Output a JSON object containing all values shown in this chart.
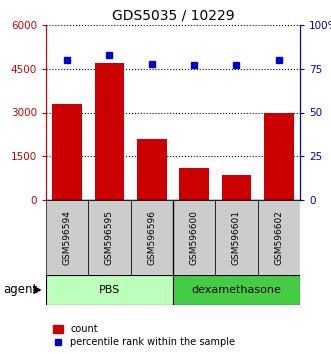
{
  "title": "GDS5035 / 10229",
  "samples": [
    "GSM596594",
    "GSM596595",
    "GSM596596",
    "GSM596600",
    "GSM596601",
    "GSM596602"
  ],
  "counts": [
    3300,
    4700,
    2100,
    1100,
    850,
    3000
  ],
  "percentiles": [
    80,
    83,
    78,
    77,
    77,
    80
  ],
  "ylim_left": [
    0,
    6000
  ],
  "ylim_right": [
    0,
    100
  ],
  "yticks_left": [
    0,
    1500,
    3000,
    4500,
    6000
  ],
  "yticks_right": [
    0,
    25,
    50,
    75,
    100
  ],
  "yticklabels_right": [
    "0",
    "25",
    "50",
    "75",
    "100%"
  ],
  "bar_color": "#cc0000",
  "dot_color": "#0000cc",
  "group_labels": [
    "PBS",
    "dexamethasone"
  ],
  "group_colors": [
    "#bbffbb",
    "#44cc44"
  ],
  "label_row_color": "#cccccc",
  "left_axis_color": "#cc0000",
  "right_axis_color": "#0000cc",
  "legend_count_label": "count",
  "legend_pct_label": "percentile rank within the sample",
  "agent_label": "agent"
}
